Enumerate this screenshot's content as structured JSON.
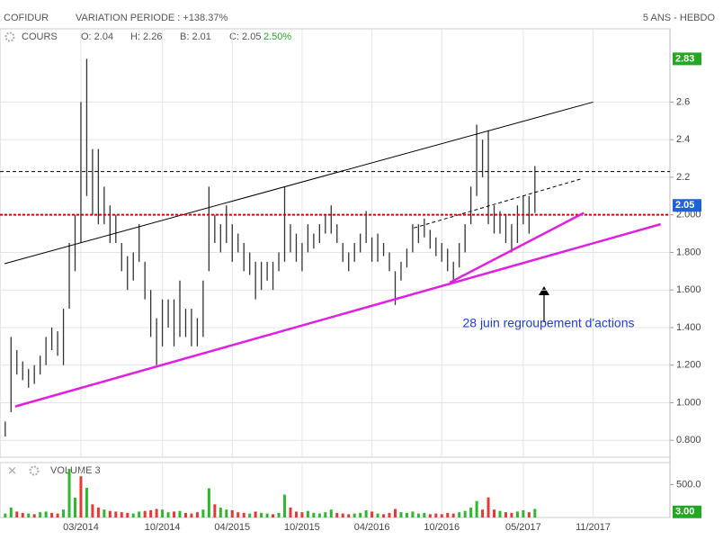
{
  "header": {
    "name": "COFIDUR",
    "variation": "VARIATION PERIODE : +138.37%",
    "period": "5 ANS - HEBDO",
    "series_label": "COURS",
    "open": "O: 2.04",
    "high": "H: 2.26",
    "low": "B: 2.01",
    "close": "C: 2.05",
    "change": "2.50%"
  },
  "chart_data": [
    {
      "type": "range_bar",
      "color": "#333333",
      "x": [
        -4.5,
        -4,
        -3.5,
        -3,
        -2.5,
        -2,
        -1.5,
        -1,
        -0.5,
        0,
        0.5,
        1,
        1.5,
        2,
        2.5,
        3,
        3.5,
        4,
        4.5,
        5,
        5.5,
        6,
        6.5,
        7,
        7.5,
        8,
        8.5,
        9,
        9.5,
        10,
        10.5,
        11,
        11.5,
        12,
        12.5,
        13,
        13.5,
        14,
        14.5,
        15,
        15.5,
        16,
        16.5,
        17,
        17.5,
        18,
        18.5,
        19,
        19.5,
        20,
        20.5,
        21,
        21.5,
        22,
        22.5,
        23,
        23.5,
        24,
        24.5,
        25,
        25.5,
        26,
        26.5,
        27,
        27.5,
        28,
        28.5,
        29,
        29.5,
        30,
        30.5,
        31,
        31.5,
        32,
        32.5,
        33,
        33.5,
        34,
        34.5,
        35,
        35.5,
        36,
        36.5,
        37,
        37.5,
        38,
        38.5,
        39,
        39.5,
        40,
        40.5,
        41
      ],
      "low": [
        0.82,
        0.95,
        1.15,
        1.12,
        1.08,
        1.1,
        1.15,
        1.2,
        1.28,
        1.25,
        1.2,
        1.5,
        1.7,
        1.85,
        2.1,
        2.0,
        1.95,
        1.95,
        1.85,
        1.85,
        1.7,
        1.6,
        1.65,
        1.75,
        1.55,
        1.35,
        1.2,
        1.3,
        1.4,
        1.3,
        1.35,
        1.35,
        1.3,
        1.3,
        1.35,
        1.7,
        1.85,
        1.8,
        1.85,
        1.75,
        1.8,
        1.7,
        1.68,
        1.55,
        1.6,
        1.65,
        1.6,
        1.7,
        1.75,
        1.8,
        1.75,
        1.7,
        1.8,
        1.82,
        1.85,
        1.9,
        1.9,
        1.85,
        1.75,
        1.7,
        1.75,
        1.8,
        1.85,
        1.75,
        1.75,
        1.78,
        1.7,
        1.52,
        1.65,
        1.72,
        1.8,
        1.85,
        1.88,
        1.82,
        1.78,
        1.75,
        1.7,
        1.65,
        1.72,
        1.8,
        1.95,
        2.1,
        2.2,
        1.95,
        1.9,
        1.9,
        1.85,
        1.8,
        1.85,
        1.95,
        1.9,
        2.01
      ],
      "high": [
        0.9,
        1.35,
        1.28,
        1.22,
        1.18,
        1.2,
        1.25,
        1.35,
        1.4,
        1.38,
        1.5,
        1.85,
        2.0,
        2.6,
        2.83,
        2.35,
        2.35,
        2.15,
        2.05,
        2.0,
        1.85,
        1.78,
        1.8,
        1.95,
        1.75,
        1.6,
        1.45,
        1.55,
        1.55,
        1.55,
        1.65,
        1.5,
        1.5,
        1.45,
        1.65,
        2.15,
        2.0,
        1.95,
        2.05,
        1.95,
        1.9,
        1.85,
        1.8,
        1.75,
        1.75,
        1.75,
        1.75,
        1.8,
        2.15,
        1.95,
        1.9,
        1.85,
        1.95,
        1.9,
        1.95,
        2.0,
        2.05,
        1.95,
        1.85,
        1.8,
        1.85,
        1.9,
        2.02,
        1.88,
        1.9,
        1.85,
        1.8,
        1.7,
        1.75,
        1.82,
        1.95,
        1.95,
        1.98,
        1.92,
        1.88,
        1.85,
        1.82,
        1.75,
        1.85,
        1.95,
        2.15,
        2.48,
        2.4,
        2.45,
        2.05,
        2.02,
        2.0,
        1.95,
        2.05,
        2.1,
        2.1,
        2.26
      ],
      "xlim": [
        -4.95,
        52.6
      ],
      "xticks": [
        {
          "value": 2,
          "label": "03/2014"
        },
        {
          "value": 9,
          "label": "10/2014"
        },
        {
          "value": 15,
          "label": "04/2015"
        },
        {
          "value": 21,
          "label": "10/2015"
        },
        {
          "value": 27,
          "label": "04/2016"
        },
        {
          "value": 33,
          "label": "10/2016"
        },
        {
          "value": 40,
          "label": "05/2017"
        },
        {
          "value": 46,
          "label": "11/2017"
        }
      ],
      "ylim": [
        0.71,
        2.99
      ],
      "yticks": [
        {
          "value": 0.8,
          "label": "0.800"
        },
        {
          "value": 1.0,
          "label": "1.000"
        },
        {
          "value": 1.2,
          "label": "1.200"
        },
        {
          "value": 1.4,
          "label": "1.400"
        },
        {
          "value": 1.6,
          "label": "1.600"
        },
        {
          "value": 1.8,
          "label": "1.800"
        },
        {
          "value": 2.0,
          "label": "2.000"
        },
        2.2,
        2.4,
        2.6
      ],
      "grid": true,
      "markers": [
        {
          "value": 2.83,
          "color": "#22a822"
        },
        {
          "value": 2.05,
          "color": "#1e63d6"
        }
      ],
      "trendlines": [
        {
          "x": [
            -4.56,
            46
          ],
          "y": [
            1.74,
            2.6
          ],
          "color": "#000000",
          "style": "solid"
        },
        {
          "x": [
            30.6,
            44.9
          ],
          "y": [
            1.93,
            2.19
          ],
          "color": "#000000",
          "style": "dashed"
        },
        {
          "x": [
            -4.95,
            52.6
          ],
          "y": [
            2.23,
            2.23
          ],
          "color": "#000000",
          "style": "dashed"
        },
        {
          "x": [
            -4.95,
            52.6
          ],
          "y": [
            2.0,
            2.0
          ],
          "color": "#e00000",
          "style": "dotted"
        },
        {
          "x": [
            -3.64,
            51.8
          ],
          "y": [
            0.98,
            1.95
          ],
          "color": "#e020e0",
          "style": "thick"
        },
        {
          "x": [
            33.7,
            45.2
          ],
          "y": [
            1.64,
            2.01
          ],
          "color": "#e020e0",
          "style": "thick"
        }
      ],
      "annotation": "28 juin regroupement d'actions"
    },
    {
      "type": "bar",
      "title": "VOLUME 3",
      "x": [
        -4.5,
        -4,
        -3.5,
        -3,
        -2.5,
        -2,
        -1.5,
        -1,
        -0.5,
        0,
        0.5,
        1,
        1.5,
        2,
        2.5,
        3,
        3.5,
        4,
        4.5,
        5,
        5.5,
        6,
        6.5,
        7,
        7.5,
        8,
        8.5,
        9,
        9.5,
        10,
        10.5,
        11,
        11.5,
        12,
        12.5,
        13,
        13.5,
        14,
        14.5,
        15,
        15.5,
        16,
        16.5,
        17,
        17.5,
        18,
        18.5,
        19,
        19.5,
        20,
        20.5,
        21,
        21.5,
        22,
        22.5,
        23,
        23.5,
        24,
        24.5,
        25,
        25.5,
        26,
        26.5,
        27,
        27.5,
        28,
        28.5,
        29,
        29.5,
        30,
        30.5,
        31,
        31.5,
        32,
        32.5,
        33,
        33.5,
        34,
        34.5,
        35,
        35.5,
        36,
        36.5,
        37,
        37.5,
        38,
        38.5,
        39,
        39.5,
        40,
        40.5,
        41
      ],
      "values": [
        60,
        150,
        90,
        70,
        60,
        50,
        80,
        90,
        70,
        60,
        120,
        736,
        300,
        625,
        450,
        200,
        150,
        120,
        100,
        90,
        80,
        70,
        60,
        90,
        100,
        110,
        130,
        120,
        80,
        90,
        100,
        70,
        60,
        80,
        120,
        444,
        200,
        150,
        120,
        110,
        80,
        70,
        60,
        90,
        70,
        60,
        50,
        70,
        347,
        150,
        90,
        80,
        100,
        70,
        60,
        80,
        120,
        70,
        60,
        50,
        60,
        70,
        110,
        90,
        60,
        50,
        70,
        130,
        80,
        70,
        90,
        60,
        70,
        50,
        60,
        50,
        70,
        60,
        80,
        100,
        150,
        250,
        120,
        305,
        120,
        100,
        80,
        70,
        90,
        110,
        80,
        130
      ],
      "colors": [
        "#2eb82e",
        "#2eb82e",
        "#e53935",
        "#e53935",
        "#2eb82e",
        "#e53935",
        "#2eb82e",
        "#2eb82e",
        "#e53935",
        "#e53935",
        "#2eb82e",
        "#2eb82e",
        "#2eb82e",
        "#e53935",
        "#2eb82e",
        "#e53935",
        "#e53935",
        "#2eb82e",
        "#e53935",
        "#e53935",
        "#e53935",
        "#e53935",
        "#2eb82e",
        "#2eb82e",
        "#e53935",
        "#e53935",
        "#e53935",
        "#2eb82e",
        "#2eb82e",
        "#e53935",
        "#2eb82e",
        "#e53935",
        "#e53935",
        "#e53935",
        "#2eb82e",
        "#2eb82e",
        "#e53935",
        "#2eb82e",
        "#2eb82e",
        "#e53935",
        "#e53935",
        "#e53935",
        "#2eb82e",
        "#e53935",
        "#2eb82e",
        "#2eb82e",
        "#e53935",
        "#2eb82e",
        "#2eb82e",
        "#e53935",
        "#e53935",
        "#e53935",
        "#2eb82e",
        "#2eb82e",
        "#2eb82e",
        "#2eb82e",
        "#2eb82e",
        "#e53935",
        "#e53935",
        "#e53935",
        "#2eb82e",
        "#2eb82e",
        "#2eb82e",
        "#e53935",
        "#2eb82e",
        "#e53935",
        "#e53935",
        "#e53935",
        "#2eb82e",
        "#2eb82e",
        "#2eb82e",
        "#2eb82e",
        "#2eb82e",
        "#e53935",
        "#e53935",
        "#e53935",
        "#e53935",
        "#e53935",
        "#2eb82e",
        "#2eb82e",
        "#2eb82e",
        "#2eb82e",
        "#e53935",
        "#e53935",
        "#e53935",
        "#2eb82e",
        "#e53935",
        "#e53935",
        "#2eb82e",
        "#2eb82e",
        "#e53935",
        "#2eb82e"
      ],
      "ylim": [
        0,
        833
      ],
      "yticks": [
        {
          "value": 500,
          "label": "500.0"
        }
      ],
      "marker": {
        "value": 3,
        "label": "3.00",
        "color": "#22a822"
      }
    }
  ]
}
